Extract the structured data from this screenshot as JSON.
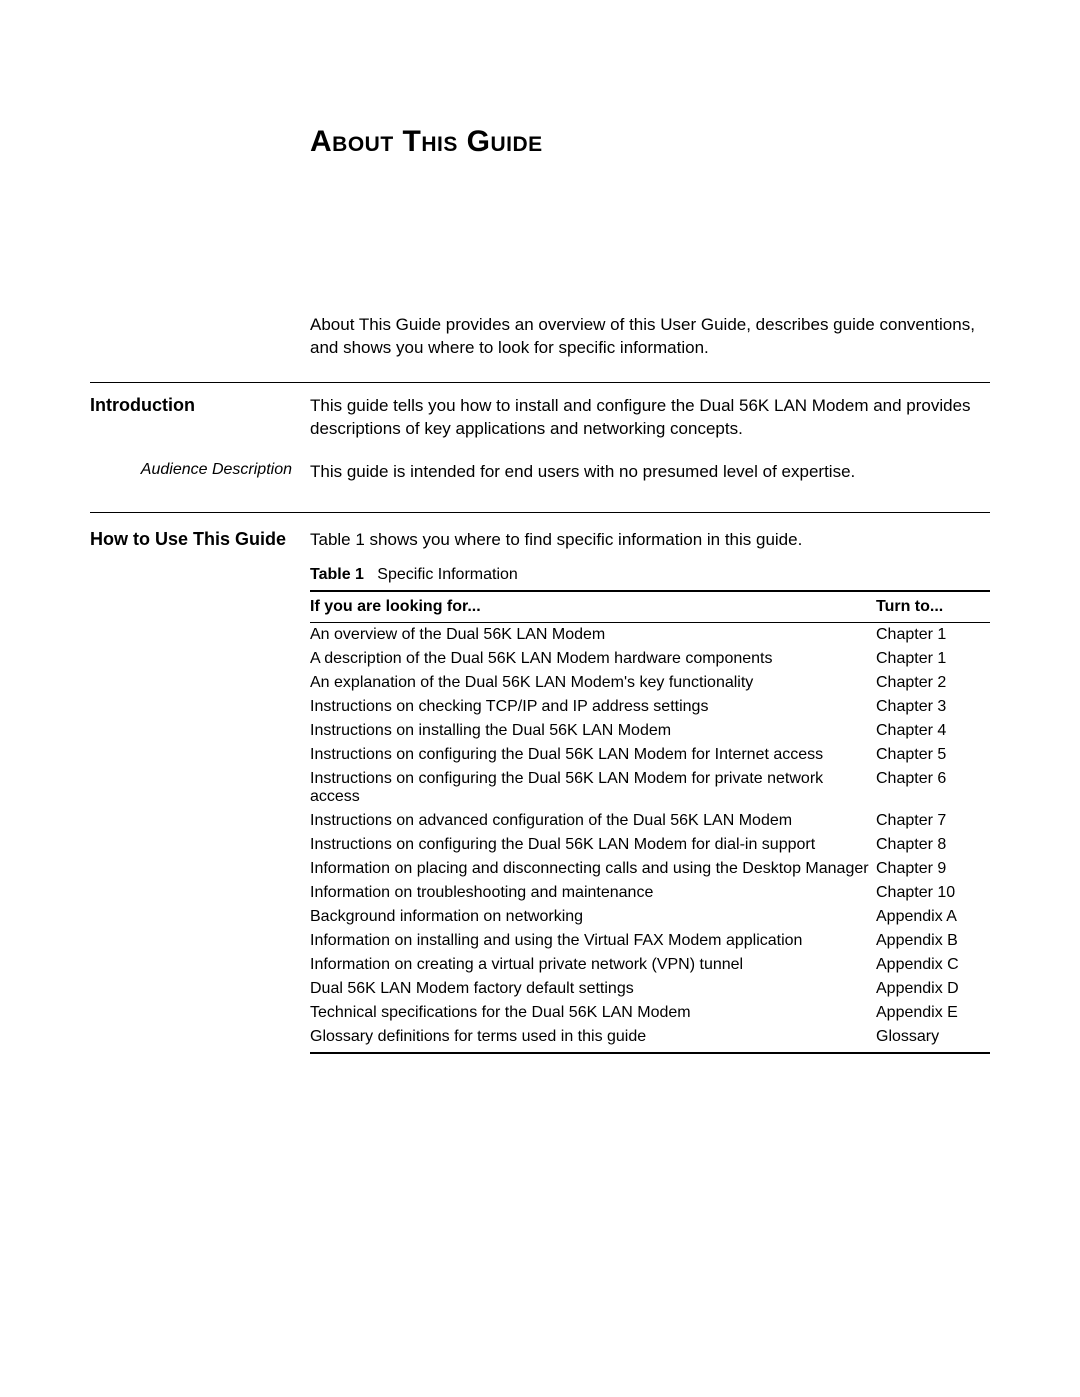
{
  "title": "About This Guide",
  "overview": "About This Guide provides an overview of this User Guide, describes guide conventions, and shows you where to look for specific information.",
  "introduction": {
    "heading": "Introduction",
    "body": "This guide tells you how to install and configure the Dual 56K LAN Modem and provides descriptions of key applications and networking concepts.",
    "audience_label": "Audience Description",
    "audience_body": "This guide is intended for end users with no presumed level of expertise."
  },
  "howto": {
    "heading": "How to Use This Guide",
    "body": "Table 1 shows you where to find specific information in this guide.",
    "table_label": "Table 1",
    "table_caption": "Specific Information",
    "columns": {
      "looking": "If you are looking for...",
      "turn": "Turn to..."
    },
    "rows": [
      {
        "looking": "An overview of the Dual 56K LAN Modem",
        "turn": "Chapter 1"
      },
      {
        "looking": "A description of the Dual 56K LAN Modem hardware components",
        "turn": "Chapter 1"
      },
      {
        "looking": "An explanation of the Dual 56K LAN Modem's key functionality",
        "turn": "Chapter 2"
      },
      {
        "looking": "Instructions on checking TCP/IP and IP address settings",
        "turn": "Chapter 3"
      },
      {
        "looking": "Instructions on installing the Dual 56K LAN Modem",
        "turn": "Chapter 4"
      },
      {
        "looking": "Instructions on configuring the Dual 56K LAN Modem for Internet access",
        "turn": "Chapter 5"
      },
      {
        "looking": "Instructions on configuring the Dual 56K LAN Modem for private network access",
        "turn": "Chapter 6"
      },
      {
        "looking": "Instructions on advanced configuration of the Dual 56K LAN Modem",
        "turn": "Chapter 7"
      },
      {
        "looking": "Instructions on configuring the Dual 56K LAN Modem for dial-in support",
        "turn": "Chapter 8"
      },
      {
        "looking": "Information on placing and disconnecting calls and using the Desktop Manager",
        "turn": "Chapter 9"
      },
      {
        "looking": "Information on troubleshooting and maintenance",
        "turn": "Chapter 10"
      },
      {
        "looking": "Background information on networking",
        "turn": "Appendix A"
      },
      {
        "looking": "Information on installing and using the Virtual FAX Modem application",
        "turn": "Appendix B"
      },
      {
        "looking": "Information on creating a virtual private network (VPN) tunnel",
        "turn": "Appendix C"
      },
      {
        "looking": "Dual 56K LAN Modem factory default settings",
        "turn": "Appendix D"
      },
      {
        "looking": "Technical specifications for the Dual 56K LAN Modem",
        "turn": "Appendix E"
      },
      {
        "looking": "Glossary definitions for terms used in this guide",
        "turn": "Glossary"
      }
    ]
  }
}
